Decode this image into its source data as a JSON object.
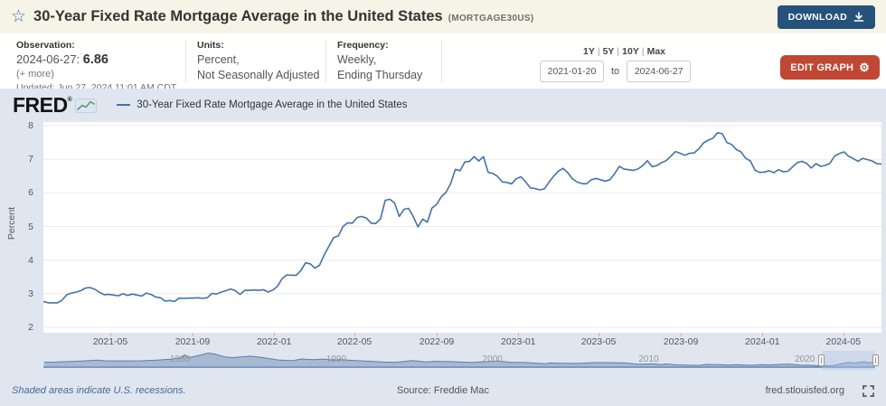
{
  "header": {
    "title": "30-Year Fixed Rate Mortgage Average in the United States",
    "series_id": "(MORTGAGE30US)",
    "download_label": "DOWNLOAD"
  },
  "observation": {
    "label": "Observation:",
    "date": "2024-06-27:",
    "value": "6.86",
    "more": "(+ more)",
    "updated": "Updated: Jun 27, 2024 11:01 AM CDT"
  },
  "units": {
    "label": "Units:",
    "lines": [
      "Percent,",
      "Not Seasonally Adjusted"
    ]
  },
  "frequency": {
    "label": "Frequency:",
    "lines": [
      "Weekly,",
      "Ending Thursday"
    ]
  },
  "range_selector": {
    "options": [
      "1Y",
      "5Y",
      "10Y",
      "Max"
    ],
    "sep": "|"
  },
  "date_range": {
    "start": "2021-01-20",
    "to_label": "to",
    "end": "2024-06-27"
  },
  "edit_graph": {
    "label": "EDIT GRAPH"
  },
  "fred_logo": {
    "text": "FRED",
    "reg": "®"
  },
  "legend": {
    "label": "30-Year Fixed Rate Mortgage Average in the United States"
  },
  "footer": {
    "recessions_note": "Shaded areas indicate U.S. recessions.",
    "source": "Source: Freddie Mac",
    "site": "fred.stlouisfed.org"
  },
  "colors": {
    "line": "#4572a7",
    "accent_red": "#bf4733",
    "accent_blue": "#25527b",
    "chart_bg": "#dfe6ef"
  },
  "chart_data": {
    "type": "line",
    "title": "30-Year Fixed Rate Mortgage Average in the United States",
    "xlabel": "",
    "ylabel": "Percent",
    "ylim": [
      2,
      8
    ],
    "y_ticks": [
      2,
      3,
      4,
      5,
      6,
      7,
      8
    ],
    "grid": true,
    "legend_position": "top-left",
    "x_start": "2021-01-21",
    "x_end": "2024-06-27",
    "frequency": "weekly",
    "x_tick_labels": [
      "2021-05",
      "2021-09",
      "2022-01",
      "2022-05",
      "2022-09",
      "2023-01",
      "2023-05",
      "2023-09",
      "2024-01",
      "2024-05"
    ],
    "series": [
      {
        "name": "30-Year Fixed Rate Mortgage Average in the United States",
        "color": "#4572a7",
        "values": [
          2.77,
          2.73,
          2.73,
          2.73,
          2.81,
          2.97,
          3.02,
          3.05,
          3.09,
          3.17,
          3.18,
          3.13,
          3.04,
          2.97,
          2.98,
          2.96,
          2.94,
          3.0,
          2.95,
          2.99,
          2.96,
          2.93,
          3.02,
          2.98,
          2.9,
          2.88,
          2.78,
          2.8,
          2.77,
          2.87,
          2.86,
          2.87,
          2.87,
          2.88,
          2.86,
          2.88,
          3.01,
          2.99,
          3.05,
          3.09,
          3.14,
          3.09,
          2.98,
          3.1,
          3.1,
          3.11,
          3.1,
          3.12,
          3.05,
          3.11,
          3.22,
          3.45,
          3.56,
          3.55,
          3.55,
          3.69,
          3.92,
          3.89,
          3.76,
          3.85,
          4.16,
          4.42,
          4.67,
          4.72,
          5.0,
          5.11,
          5.1,
          5.27,
          5.3,
          5.25,
          5.1,
          5.09,
          5.23,
          5.78,
          5.81,
          5.7,
          5.3,
          5.51,
          5.54,
          5.3,
          4.99,
          5.22,
          5.13,
          5.55,
          5.66,
          5.89,
          6.02,
          6.29,
          6.7,
          6.66,
          6.92,
          6.94,
          7.08,
          6.95,
          7.08,
          6.61,
          6.58,
          6.49,
          6.33,
          6.31,
          6.27,
          6.42,
          6.48,
          6.33,
          6.15,
          6.13,
          6.09,
          6.12,
          6.32,
          6.5,
          6.65,
          6.73,
          6.6,
          6.42,
          6.32,
          6.28,
          6.27,
          6.39,
          6.43,
          6.39,
          6.35,
          6.39,
          6.57,
          6.79,
          6.71,
          6.69,
          6.67,
          6.71,
          6.81,
          6.96,
          6.78,
          6.81,
          6.9,
          6.96,
          7.09,
          7.23,
          7.18,
          7.12,
          7.18,
          7.19,
          7.31,
          7.49,
          7.57,
          7.63,
          7.79,
          7.76,
          7.5,
          7.44,
          7.29,
          7.22,
          7.03,
          6.95,
          6.67,
          6.61,
          6.62,
          6.66,
          6.6,
          6.69,
          6.63,
          6.64,
          6.77,
          6.9,
          6.94,
          6.88,
          6.74,
          6.87,
          6.79,
          6.82,
          6.88,
          7.1,
          7.17,
          7.22,
          7.09,
          7.02,
          6.94,
          7.03,
          6.99,
          6.95,
          6.87,
          6.86
        ]
      }
    ],
    "minimap": {
      "x_labels": [
        "1980",
        "1990",
        "2000",
        "2010",
        "2020"
      ],
      "range": [
        1971.25,
        2024.5
      ],
      "ymax": 19,
      "selection": [
        2021.06,
        2024.49
      ],
      "points": [
        [
          1971.3,
          7.3
        ],
        [
          1972,
          7.4
        ],
        [
          1973,
          8.0
        ],
        [
          1973.7,
          8.7
        ],
        [
          1974.7,
          9.8
        ],
        [
          1975.2,
          8.9
        ],
        [
          1976,
          8.8
        ],
        [
          1976.8,
          8.8
        ],
        [
          1977.5,
          8.9
        ],
        [
          1978.5,
          9.7
        ],
        [
          1979.5,
          11.1
        ],
        [
          1980.1,
          13.0
        ],
        [
          1980.3,
          16.3
        ],
        [
          1980.55,
          12.7
        ],
        [
          1981.1,
          15.1
        ],
        [
          1981.8,
          18.5
        ],
        [
          1982.2,
          17.3
        ],
        [
          1982.9,
          13.6
        ],
        [
          1983.4,
          12.8
        ],
        [
          1984.5,
          14.6
        ],
        [
          1985.2,
          13.1
        ],
        [
          1986.3,
          10.0
        ],
        [
          1987.2,
          9.1
        ],
        [
          1987.8,
          11.2
        ],
        [
          1988.5,
          10.4
        ],
        [
          1989.2,
          11.1
        ],
        [
          1989.9,
          9.8
        ],
        [
          1990.4,
          10.3
        ],
        [
          1991,
          9.5
        ],
        [
          1992,
          8.5
        ],
        [
          1993,
          7.4
        ],
        [
          1993.8,
          7.0
        ],
        [
          1994.9,
          9.2
        ],
        [
          1995.7,
          7.6
        ],
        [
          1996.4,
          8.3
        ],
        [
          1997.2,
          7.9
        ],
        [
          1998.7,
          6.8
        ],
        [
          1999.6,
          7.9
        ],
        [
          2000.4,
          8.5
        ],
        [
          2001.2,
          7.0
        ],
        [
          2002,
          7.0
        ],
        [
          2003.4,
          5.3
        ],
        [
          2003.7,
          6.3
        ],
        [
          2004.3,
          5.9
        ],
        [
          2005.5,
          5.7
        ],
        [
          2006.5,
          6.7
        ],
        [
          2007.5,
          6.7
        ],
        [
          2008.5,
          6.3
        ],
        [
          2009.3,
          4.8
        ],
        [
          2010.3,
          5.1
        ],
        [
          2010.8,
          4.2
        ],
        [
          2011.1,
          5.0
        ],
        [
          2011.8,
          3.9
        ],
        [
          2012.9,
          3.35
        ],
        [
          2013.3,
          3.45
        ],
        [
          2013.7,
          4.5
        ],
        [
          2014.5,
          4.1
        ],
        [
          2015.1,
          3.6
        ],
        [
          2015.6,
          4.0
        ],
        [
          2016.6,
          3.4
        ],
        [
          2017.2,
          4.3
        ],
        [
          2017.7,
          3.8
        ],
        [
          2018.9,
          4.95
        ],
        [
          2019.7,
          3.55
        ],
        [
          2020.2,
          3.5
        ],
        [
          2021.0,
          2.65
        ],
        [
          2021.8,
          3.1
        ],
        [
          2022.8,
          7.1
        ],
        [
          2023.1,
          6.1
        ],
        [
          2023.8,
          7.8
        ],
        [
          2024.0,
          6.6
        ],
        [
          2024.4,
          7.2
        ],
        [
          2024.5,
          6.86
        ]
      ]
    }
  }
}
